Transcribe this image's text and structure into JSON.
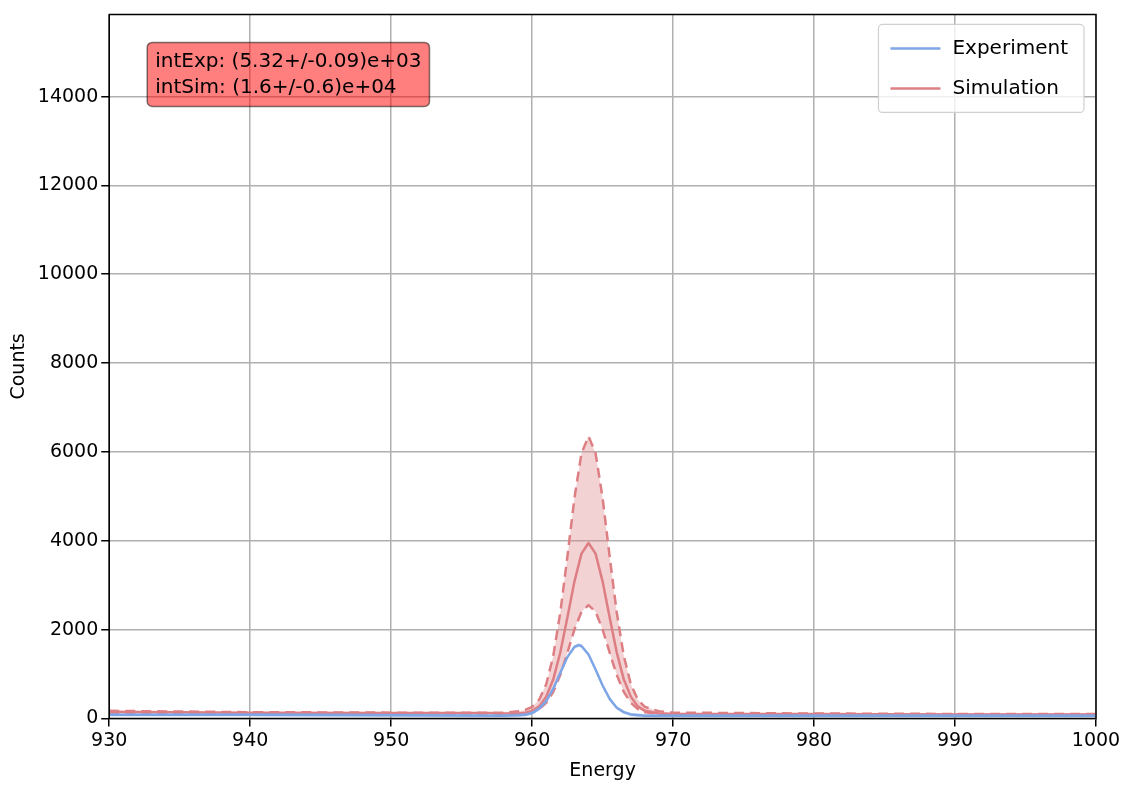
{
  "chart_data": {
    "type": "line",
    "xlabel": "Energy",
    "ylabel": "Counts",
    "xlim": [
      930,
      1000
    ],
    "xticks": [
      930,
      940,
      950,
      960,
      970,
      980,
      990,
      1000
    ],
    "ylim": [
      0,
      15850
    ],
    "yticks": [
      0,
      2000,
      4000,
      6000,
      8000,
      10000,
      12000,
      14000
    ],
    "grid": true,
    "legend": "top right",
    "marker": "none",
    "annotations": [
      "intExp: (5.32+/-0.09)e+03",
      "intSim: (1.6+/-0.6)e+04"
    ],
    "series": [
      {
        "name": "Experiment",
        "color": "#7fa6e6",
        "x": [
          930,
          940,
          950,
          958,
          959,
          959.5,
          960,
          960.5,
          961,
          961.5,
          962,
          962.5,
          963,
          963.3,
          963.5,
          964,
          964.5,
          965,
          965.5,
          966,
          966.5,
          967,
          968,
          970,
          980,
          990,
          1000
        ],
        "values": [
          80,
          80,
          70,
          60,
          70,
          80,
          120,
          220,
          390,
          670,
          1030,
          1380,
          1610,
          1650,
          1630,
          1440,
          1100,
          740,
          440,
          240,
          140,
          90,
          60,
          60,
          60,
          60,
          60
        ],
        "lower": [
          40,
          40,
          30,
          20,
          30,
          40,
          80,
          180,
          350,
          630,
          990,
          1340,
          1570,
          1610,
          1590,
          1400,
          1060,
          700,
          400,
          200,
          100,
          50,
          20,
          20,
          20,
          20,
          20
        ],
        "upper": [
          120,
          120,
          110,
          100,
          110,
          120,
          160,
          260,
          430,
          710,
          1070,
          1420,
          1650,
          1690,
          1670,
          1480,
          1140,
          780,
          480,
          280,
          180,
          130,
          100,
          100,
          100,
          100,
          100
        ]
      },
      {
        "name": "Simulation",
        "color": "#de7f84",
        "x": [
          930,
          940,
          950,
          957,
          958,
          959,
          959.5,
          960,
          960.5,
          961,
          961.5,
          962,
          962.5,
          963,
          963.5,
          964,
          964.5,
          965,
          965.5,
          966,
          966.5,
          967,
          967.5,
          968,
          969,
          970,
          980,
          990,
          1000
        ],
        "values": [
          150,
          130,
          120,
          120,
          110,
          110,
          130,
          170,
          270,
          490,
          880,
          1490,
          2270,
          3080,
          3710,
          3950,
          3710,
          3080,
          2270,
          1490,
          880,
          490,
          270,
          170,
          110,
          100,
          100,
          90,
          90
        ],
        "lower": [
          130,
          120,
          110,
          110,
          100,
          100,
          110,
          140,
          210,
          350,
          600,
          980,
          1480,
          2000,
          2400,
          2550,
          2400,
          2000,
          1480,
          980,
          600,
          350,
          210,
          140,
          100,
          90,
          90,
          80,
          80
        ],
        "upper": [
          170,
          140,
          130,
          130,
          130,
          160,
          190,
          260,
          420,
          770,
          1410,
          2390,
          3640,
          4960,
          5970,
          6350,
          5970,
          4960,
          3640,
          2390,
          1410,
          770,
          420,
          260,
          160,
          130,
          110,
          100,
          100
        ]
      },
      {
        "color": "#de7f84",
        "line_style": "dashed",
        "x": [
          930,
          940,
          950,
          957,
          958,
          959,
          959.5,
          960,
          960.5,
          961,
          961.5,
          962,
          962.5,
          963,
          963.5,
          964,
          964.5,
          965,
          965.5,
          966,
          966.5,
          967,
          967.5,
          968,
          969,
          970,
          980,
          990,
          1000
        ],
        "values": [
          130,
          120,
          110,
          110,
          100,
          100,
          110,
          140,
          210,
          350,
          600,
          980,
          1480,
          2000,
          2400,
          2550,
          2400,
          2000,
          1480,
          980,
          600,
          350,
          210,
          140,
          100,
          90,
          90,
          80,
          80
        ]
      },
      {
        "color": "#de7f84",
        "line_style": "dashed",
        "x": [
          930,
          940,
          950,
          957,
          958,
          959,
          959.5,
          960,
          960.5,
          961,
          961.5,
          962,
          962.5,
          963,
          963.5,
          964,
          964.5,
          965,
          965.5,
          966,
          966.5,
          967,
          967.5,
          968,
          969,
          970,
          980,
          990,
          1000
        ],
        "values": [
          170,
          140,
          130,
          130,
          130,
          160,
          190,
          260,
          420,
          770,
          1410,
          2390,
          3640,
          4960,
          5970,
          6350,
          5970,
          4960,
          3640,
          2390,
          1410,
          770,
          420,
          260,
          160,
          130,
          110,
          100,
          100
        ]
      }
    ]
  }
}
